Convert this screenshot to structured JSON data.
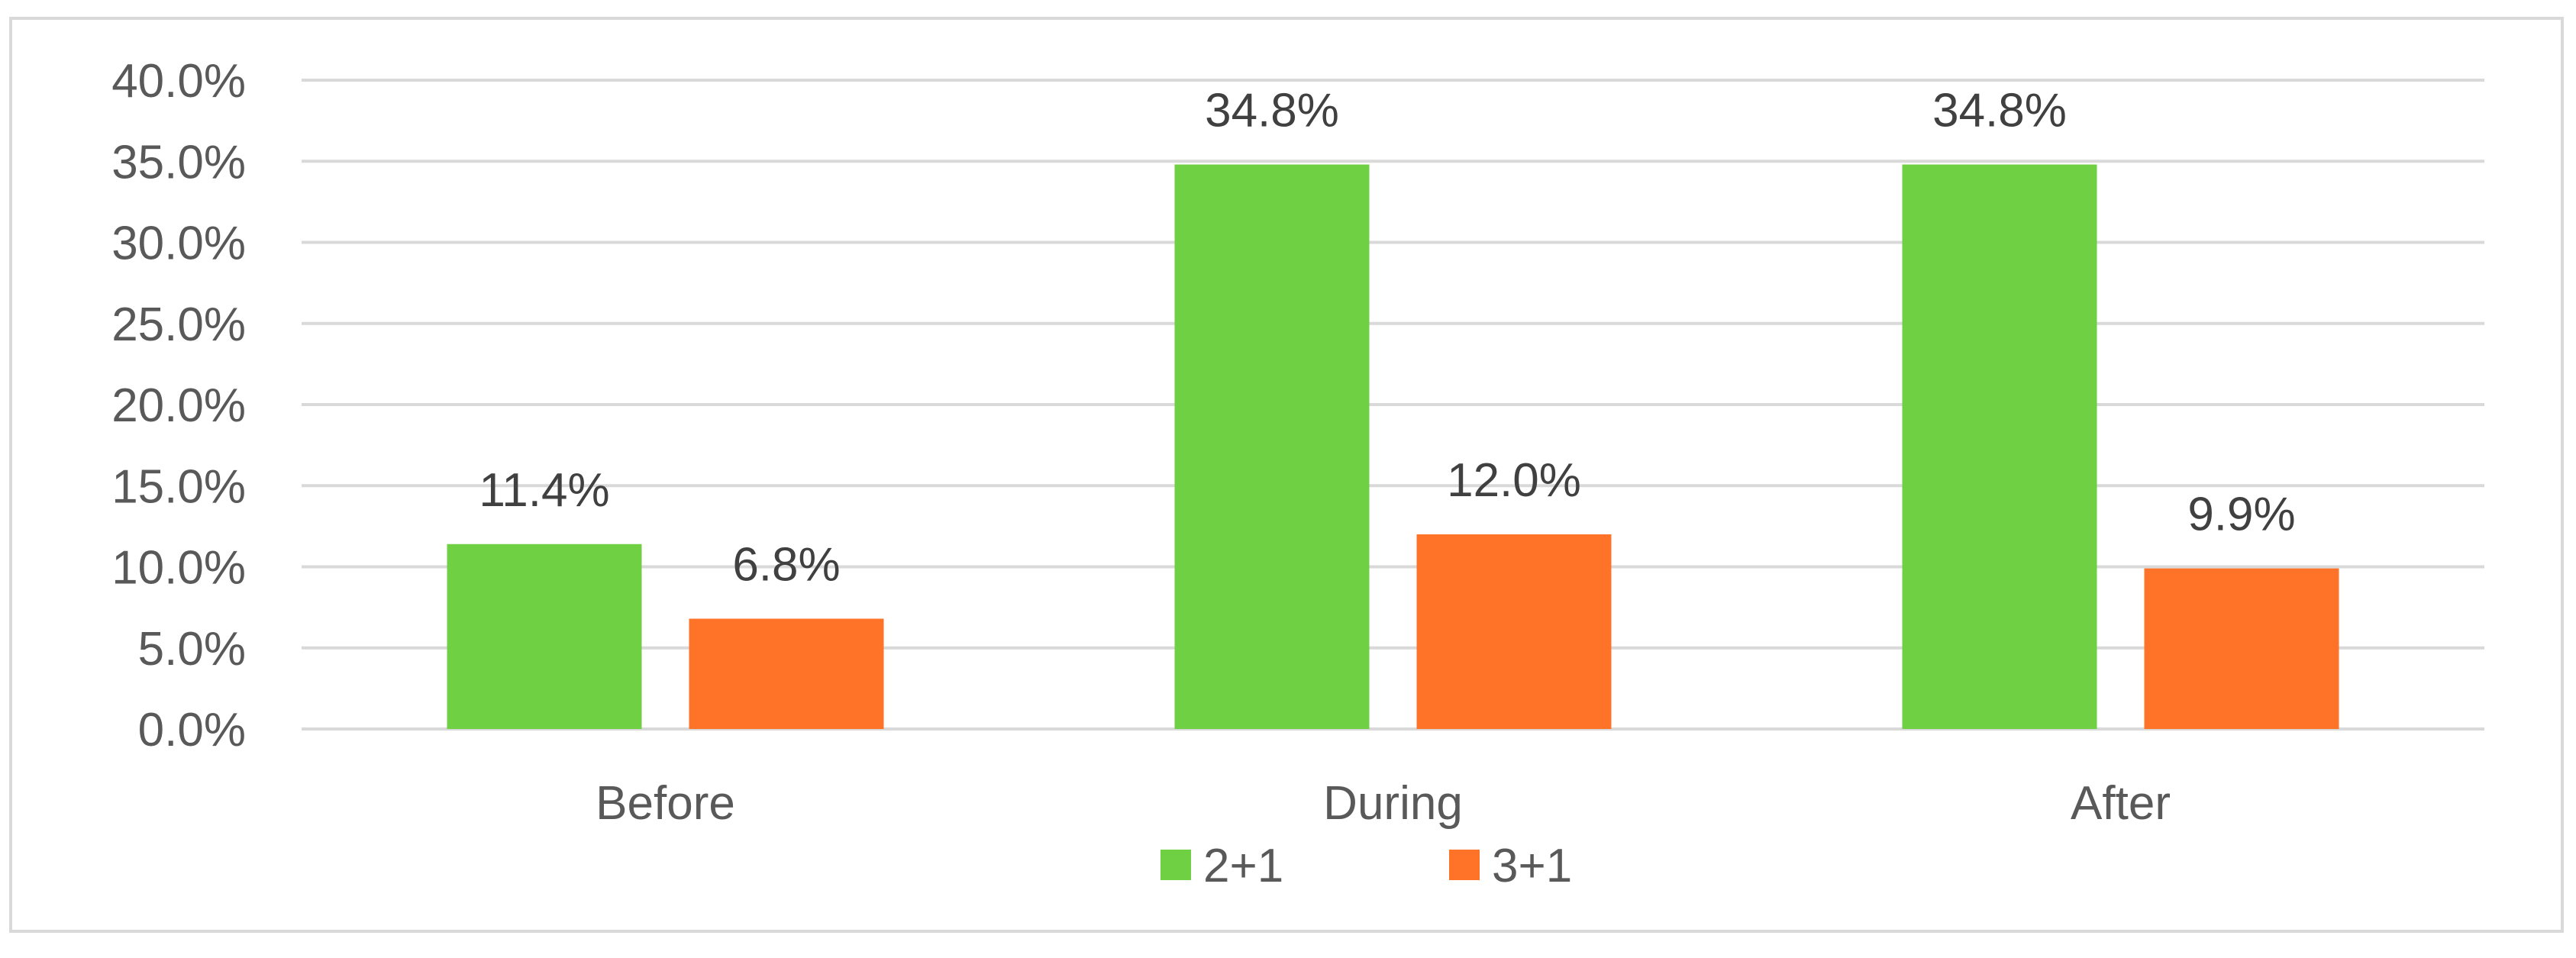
{
  "chart_data": {
    "type": "bar",
    "categories": [
      "Before",
      "During",
      "After"
    ],
    "series": [
      {
        "name": "2+1",
        "values": [
          11.4,
          34.8,
          34.8
        ],
        "color": "#70d044"
      },
      {
        "name": "3+1",
        "values": [
          6.8,
          12.0,
          9.9
        ],
        "color": "#ff7328"
      }
    ],
    "data_labels": [
      [
        "11.4%",
        "34.8%",
        "34.8%"
      ],
      [
        "6.8%",
        "12.0%",
        "9.9%"
      ]
    ],
    "y_ticks": [
      "0.0%",
      "5.0%",
      "10.0%",
      "15.0%",
      "20.0%",
      "25.0%",
      "30.0%",
      "35.0%",
      "40.0%"
    ],
    "ylim": [
      0,
      40
    ],
    "y_unit": "%",
    "grid": true,
    "gridline_color": "#d9d9d9",
    "legend_position": "bottom",
    "title": "",
    "xlabel": "",
    "ylabel": ""
  }
}
